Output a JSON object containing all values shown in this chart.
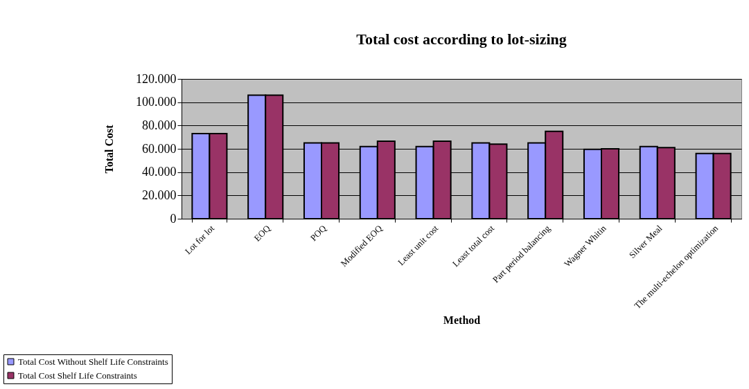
{
  "chart_data": {
    "type": "bar",
    "title": "Total cost according to lot-sizing",
    "xlabel": "Method",
    "ylabel": "Total Cost",
    "categories": [
      "Lot for lot",
      "EOQ",
      "POQ",
      "Modified EOQ",
      "Least unit cost",
      "Least total cost",
      "Part period balancing",
      "Wagner Whitin",
      "Silver Meal",
      "The multi-echelon optimization"
    ],
    "series": [
      {
        "name": "Total Cost Without Shelf Life Constraints",
        "color": "#9999ff",
        "values": [
          73000,
          106000,
          65000,
          62000,
          62000,
          65000,
          65000,
          59500,
          62000,
          56000
        ]
      },
      {
        "name": "Total Cost Shelf Life Constraints",
        "color": "#993366",
        "values": [
          73000,
          106000,
          65000,
          66500,
          66500,
          64000,
          75000,
          60000,
          61000,
          56000
        ]
      }
    ],
    "ylim": [
      0,
      120000
    ],
    "yticks": [
      0,
      {
        "value": 20000,
        "label": "20.000"
      },
      {
        "value": 40000,
        "label": "40.000"
      },
      {
        "value": 60000,
        "label": "60.000"
      },
      {
        "value": 80000,
        "label": "80.000"
      },
      {
        "value": 100000,
        "label": "100.000"
      },
      {
        "value": 120000,
        "label": "120.000"
      }
    ],
    "grid": "y",
    "legend": "bottom left"
  }
}
